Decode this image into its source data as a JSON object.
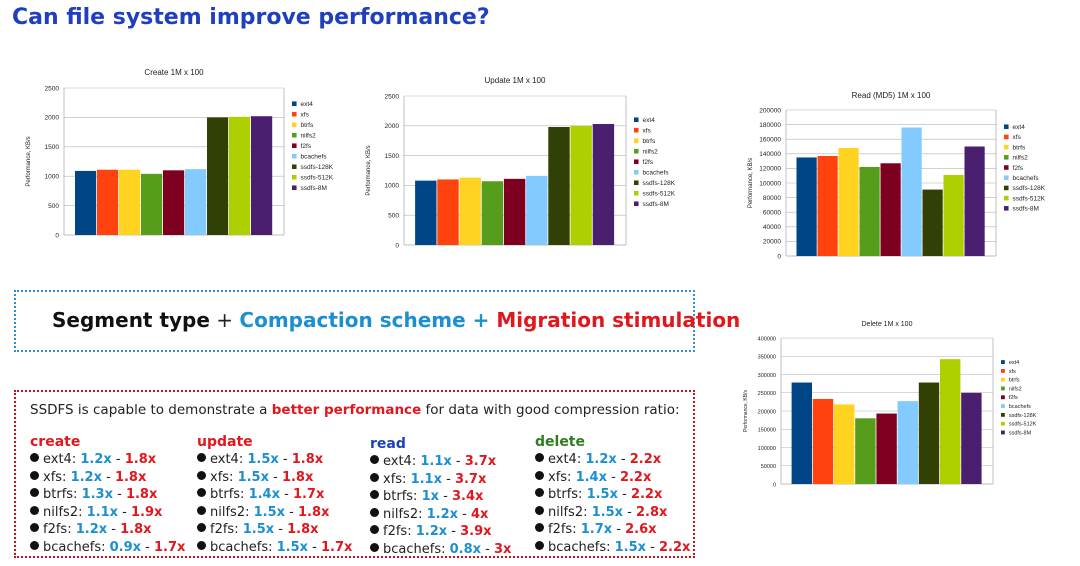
{
  "slide": {
    "title": "Can file system improve performance?"
  },
  "chart_data": [
    {
      "type": "bar",
      "id": "create",
      "title": "Create 1M x 100",
      "ylabel": "Performance, KB/s",
      "ylim": [
        0,
        2500
      ],
      "yticks": [
        0,
        500,
        1000,
        1500,
        2000,
        2500
      ],
      "series": [
        {
          "name": "ext4",
          "value": 1090
        },
        {
          "name": "xfs",
          "value": 1110
        },
        {
          "name": "btrfs",
          "value": 1110
        },
        {
          "name": "nilfs2",
          "value": 1040
        },
        {
          "name": "f2fs",
          "value": 1100
        },
        {
          "name": "bcachefs",
          "value": 1120
        },
        {
          "name": "ssdfs-128K",
          "value": 2000
        },
        {
          "name": "ssdfs-512K",
          "value": 2010
        },
        {
          "name": "ssdfs-8M",
          "value": 2020
        }
      ],
      "grid": true,
      "legend": "right"
    },
    {
      "type": "bar",
      "id": "update",
      "title": "Update 1M x 100",
      "ylabel": "Performance, KB/s",
      "ylim": [
        0,
        2500
      ],
      "yticks": [
        0,
        500,
        1000,
        1500,
        2000,
        2500
      ],
      "series": [
        {
          "name": "ext4",
          "value": 1080
        },
        {
          "name": "xfs",
          "value": 1100
        },
        {
          "name": "btrfs",
          "value": 1130
        },
        {
          "name": "nilfs2",
          "value": 1070
        },
        {
          "name": "f2fs",
          "value": 1110
        },
        {
          "name": "bcachefs",
          "value": 1160
        },
        {
          "name": "ssdfs-128K",
          "value": 1980
        },
        {
          "name": "ssdfs-512K",
          "value": 2000
        },
        {
          "name": "ssdfs-8M",
          "value": 2030
        }
      ],
      "grid": true,
      "legend": "right"
    },
    {
      "type": "bar",
      "id": "read",
      "title": "Read (MD5) 1M x 100",
      "ylabel": "Performance, KB/s",
      "ylim": [
        0,
        200000
      ],
      "yticks": [
        0,
        20000,
        40000,
        60000,
        80000,
        100000,
        120000,
        140000,
        160000,
        180000,
        200000
      ],
      "series": [
        {
          "name": "ext4",
          "value": 135000
        },
        {
          "name": "xfs",
          "value": 137000
        },
        {
          "name": "btrfs",
          "value": 148000
        },
        {
          "name": "nilfs2",
          "value": 122000
        },
        {
          "name": "f2fs",
          "value": 127000
        },
        {
          "name": "bcachefs",
          "value": 176000
        },
        {
          "name": "ssdfs-128K",
          "value": 91000
        },
        {
          "name": "ssdfs-512K",
          "value": 111000
        },
        {
          "name": "ssdfs-8M",
          "value": 150000
        }
      ],
      "grid": true,
      "legend": "right"
    },
    {
      "type": "bar",
      "id": "delete",
      "title": "Delete 1M x 100",
      "ylabel": "Performance, KB/s",
      "ylim": [
        0,
        400000
      ],
      "yticks": [
        0,
        50000,
        100000,
        150000,
        200000,
        250000,
        300000,
        350000,
        400000
      ],
      "series": [
        {
          "name": "ext4",
          "value": 278000
        },
        {
          "name": "xfs",
          "value": 233000
        },
        {
          "name": "btrfs",
          "value": 218000
        },
        {
          "name": "nilfs2",
          "value": 180000
        },
        {
          "name": "f2fs",
          "value": 193000
        },
        {
          "name": "bcachefs",
          "value": 227000
        },
        {
          "name": "ssdfs-128K",
          "value": 278000
        },
        {
          "name": "ssdfs-512K",
          "value": 342000
        },
        {
          "name": "ssdfs-8M",
          "value": 250000
        }
      ],
      "grid": true,
      "legend": "right"
    }
  ],
  "colors": {
    "ext4": "#004586",
    "xfs": "#ff420e",
    "btrfs": "#ffd320",
    "nilfs2": "#579d1c",
    "f2fs": "#7e0021",
    "bcachefs": "#83caff",
    "ssdfs-128K": "#314004",
    "ssdfs-512K": "#aecf00",
    "ssdfs-8M": "#4b1f6f"
  },
  "segment_box": {
    "part1": "Segment type",
    "plus1": " + ",
    "part2": "Compaction scheme",
    "plus2": " + ",
    "part3": "Migration stimulation"
  },
  "perf_box": {
    "intro_before": "SSDFS is capable to demonstrate a ",
    "intro_highlight": "better performance",
    "intro_after": " for data with good compression ratio:",
    "columns": [
      {
        "heading": "create",
        "color": "#e0181e",
        "rows": [
          {
            "fs": "ext4: ",
            "lo": "1.2x",
            "sep": " - ",
            "hi": "1.8x"
          },
          {
            "fs": "xfs: ",
            "lo": "1.2x",
            "sep": " - ",
            "hi": "1.8x"
          },
          {
            "fs": "btrfs: ",
            "lo": "1.3x",
            "sep": " - ",
            "hi": "1.8x"
          },
          {
            "fs": "nilfs2: ",
            "lo": "1.1x",
            "sep": " - ",
            "hi": "1.9x"
          },
          {
            "fs": "f2fs: ",
            "lo": "1.2x",
            "sep": " - ",
            "hi": "1.8x"
          },
          {
            "fs": "bcachefs: ",
            "lo": "0.9x",
            "sep": " - ",
            "hi": "1.7x"
          }
        ]
      },
      {
        "heading": "update",
        "color": "#e0181e",
        "rows": [
          {
            "fs": "ext4: ",
            "lo": "1.5x",
            "sep": " - ",
            "hi": "1.8x"
          },
          {
            "fs": "xfs: ",
            "lo": "1.5x",
            "sep": " - ",
            "hi": "1.8x"
          },
          {
            "fs": "btrfs: ",
            "lo": "1.4x",
            "sep": " - ",
            "hi": "1.7x"
          },
          {
            "fs": "nilfs2: ",
            "lo": "1.5x",
            "sep": " - ",
            "hi": "1.8x"
          },
          {
            "fs": "f2fs: ",
            "lo": "1.5x",
            "sep": " - ",
            "hi": "1.8x"
          },
          {
            "fs": "bcachefs: ",
            "lo": "1.5x",
            "sep": " - ",
            "hi": "1.7x"
          }
        ]
      },
      {
        "heading": "read",
        "color": "#1f3fbf",
        "rows": [
          {
            "fs": "ext4: ",
            "lo": "1.1x",
            "sep": " - ",
            "hi": "3.7x"
          },
          {
            "fs": "xfs: ",
            "lo": "1.1x",
            "sep": " - ",
            "hi": "3.7x"
          },
          {
            "fs": "btrfs: ",
            "lo": "1x",
            "sep": " - ",
            "hi": "3.4x"
          },
          {
            "fs": "nilfs2: ",
            "lo": "1.2x",
            "sep": " - ",
            "hi": "4x"
          },
          {
            "fs": "f2fs: ",
            "lo": "1.2x",
            "sep": " - ",
            "hi": "3.9x"
          },
          {
            "fs": "bcachefs: ",
            "lo": "0.8x",
            "sep": " - ",
            "hi": "3x"
          }
        ]
      },
      {
        "heading": "delete",
        "color": "#2e7d1e",
        "rows": [
          {
            "fs": "ext4: ",
            "lo": "1.2x",
            "sep": " - ",
            "hi": "2.2x"
          },
          {
            "fs": "xfs: ",
            "lo": "1.4x",
            "sep": " - ",
            "hi": "2.2x"
          },
          {
            "fs": "btrfs: ",
            "lo": "1.5x",
            "sep": " - ",
            "hi": "2.2x"
          },
          {
            "fs": "nilfs2: ",
            "lo": "1.5x",
            "sep": " - ",
            "hi": "2.8x"
          },
          {
            "fs": "f2fs: ",
            "lo": "1.7x",
            "sep": " - ",
            "hi": "2.6x"
          },
          {
            "fs": "bcachefs: ",
            "lo": "1.5x",
            "sep": " - ",
            "hi": "2.2x"
          }
        ]
      }
    ]
  }
}
